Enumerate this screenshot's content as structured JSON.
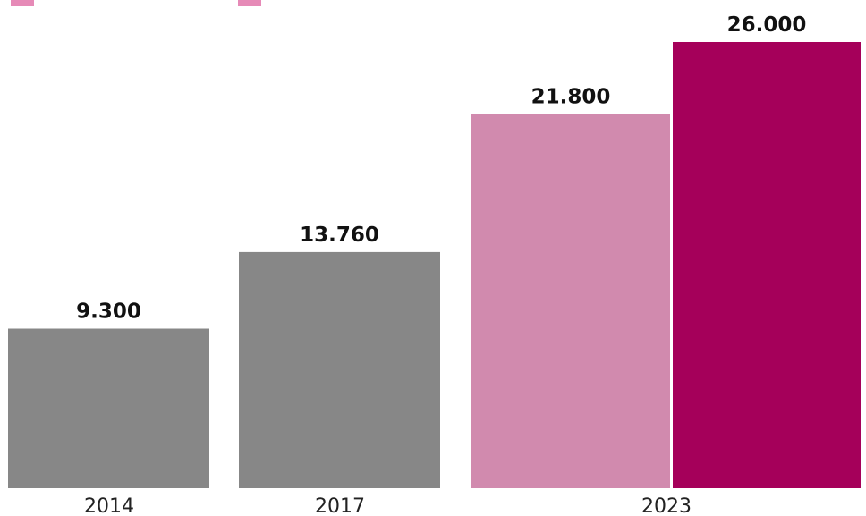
{
  "chart_data": {
    "type": "bar",
    "categories": [
      "2014",
      "2017",
      "2023"
    ],
    "ylim": [
      0,
      26000
    ],
    "bars": [
      {
        "category": "2014",
        "value": 9300,
        "label": "9.300",
        "color": "#878787"
      },
      {
        "category": "2017",
        "value": 13760,
        "label": "13.760",
        "color": "#878787"
      },
      {
        "category": "2023",
        "value": 21800,
        "label": "21.800",
        "color": "#d18aae"
      },
      {
        "category": "2023",
        "value": 26000,
        "label": "26.000",
        "color": "#a5005a"
      }
    ],
    "legend_swatch_colors": [
      "#e68ab7",
      "#e68ab7"
    ],
    "grid": false
  }
}
